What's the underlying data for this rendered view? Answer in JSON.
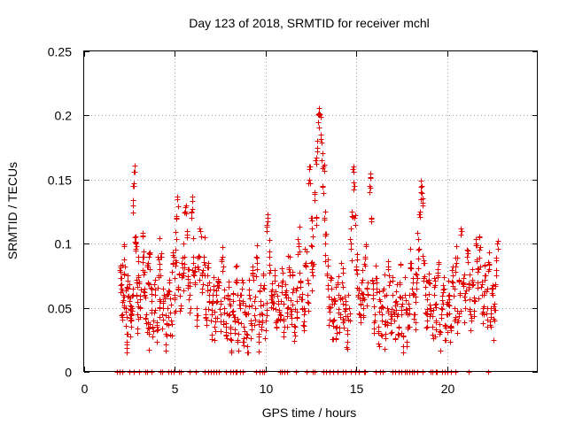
{
  "chart_data": {
    "type": "scatter",
    "title": "Day 123 of 2018, SRMTID for receiver mchl",
    "xlabel": "GPS time / hours",
    "ylabel": "SRMTID / TECUs",
    "xlim": [
      0,
      25
    ],
    "ylim": [
      0,
      0.25
    ],
    "xticks": [
      0,
      5,
      10,
      15,
      20
    ],
    "xtick_labels": [
      "0",
      "5",
      "10",
      "15",
      "20"
    ],
    "yticks": [
      0,
      0.05,
      0.1,
      0.15,
      0.2,
      0.25
    ],
    "ytick_labels": [
      "0",
      "0.05",
      "0.1",
      "0.15",
      "0.2",
      "0.25"
    ],
    "grid": true,
    "marker": "+",
    "color": "#e00000",
    "series": [
      {
        "name": "SRMTID",
        "description": "dense cloud of points, approximated",
        "points": [
          [
            2.0,
            0.068
          ],
          [
            2.05,
            0.073
          ],
          [
            2.1,
            0.045
          ],
          [
            2.15,
            0.06
          ],
          [
            2.2,
            0.088
          ],
          [
            2.3,
            0.05
          ],
          [
            2.35,
            0.03
          ],
          [
            2.4,
            0.065
          ],
          [
            2.5,
            0.055
          ],
          [
            2.55,
            0.04
          ],
          [
            2.6,
            0.035
          ],
          [
            2.65,
            0.05
          ],
          [
            2.7,
            0.13
          ],
          [
            2.72,
            0.145
          ],
          [
            2.75,
            0.156
          ],
          [
            2.8,
            0.105
          ],
          [
            2.85,
            0.1
          ],
          [
            2.9,
            0.06
          ],
          [
            2.95,
            0.045
          ],
          [
            3.0,
            0.075
          ],
          [
            3.1,
            0.05
          ],
          [
            3.2,
            0.106
          ],
          [
            3.25,
            0.09
          ],
          [
            3.3,
            0.065
          ],
          [
            3.4,
            0.045
          ],
          [
            3.5,
            0.07
          ],
          [
            3.55,
            0.03
          ],
          [
            3.6,
            0.08
          ],
          [
            3.7,
            0.055
          ],
          [
            3.8,
            0.04
          ],
          [
            3.9,
            0.06
          ],
          [
            4.0,
            0.035
          ],
          [
            4.1,
            0.075
          ],
          [
            4.15,
            0.05
          ],
          [
            4.2,
            0.09
          ],
          [
            4.3,
            0.045
          ],
          [
            4.4,
            0.06
          ],
          [
            4.5,
            0.03
          ],
          [
            4.6,
            0.05
          ],
          [
            4.7,
            0.07
          ],
          [
            4.8,
            0.04
          ],
          [
            4.9,
            0.085
          ],
          [
            5.0,
            0.06
          ],
          [
            5.05,
            0.095
          ],
          [
            5.1,
            0.12
          ],
          [
            5.15,
            0.135
          ],
          [
            5.2,
            0.065
          ],
          [
            5.3,
            0.05
          ],
          [
            5.4,
            0.075
          ],
          [
            5.5,
            0.09
          ],
          [
            5.55,
            0.125
          ],
          [
            5.6,
            0.13
          ],
          [
            5.65,
            0.105
          ],
          [
            5.7,
            0.08
          ],
          [
            5.8,
            0.06
          ],
          [
            5.9,
            0.125
          ],
          [
            5.95,
            0.133
          ],
          [
            6.0,
            0.09
          ],
          [
            6.1,
            0.07
          ],
          [
            6.2,
            0.05
          ],
          [
            6.3,
            0.08
          ],
          [
            6.4,
            0.11
          ],
          [
            6.5,
            0.065
          ],
          [
            6.6,
            0.09
          ],
          [
            6.7,
            0.045
          ],
          [
            6.8,
            0.075
          ],
          [
            6.9,
            0.055
          ],
          [
            7.0,
            0.04
          ],
          [
            7.1,
            0.06
          ],
          [
            7.2,
            0.035
          ],
          [
            7.3,
            0.055
          ],
          [
            7.4,
            0.07
          ],
          [
            7.5,
            0.045
          ],
          [
            7.6,
            0.09
          ],
          [
            7.7,
            0.05
          ],
          [
            7.8,
            0.035
          ],
          [
            7.9,
            0.06
          ],
          [
            8.0,
            0.045
          ],
          [
            8.1,
            0.025
          ],
          [
            8.2,
            0.055
          ],
          [
            8.3,
            0.04
          ],
          [
            8.4,
            0.07
          ],
          [
            8.5,
            0.03
          ],
          [
            8.6,
            0.05
          ],
          [
            8.7,
            0.065
          ],
          [
            8.8,
            0.035
          ],
          [
            8.9,
            0.045
          ],
          [
            9.0,
            0.02
          ],
          [
            9.1,
            0.06
          ],
          [
            9.2,
            0.04
          ],
          [
            9.3,
            0.075
          ],
          [
            9.4,
            0.05
          ],
          [
            9.5,
            0.085
          ],
          [
            9.6,
            0.03
          ],
          [
            9.7,
            0.055
          ],
          [
            9.8,
            0.045
          ],
          [
            9.9,
            0.065
          ],
          [
            10.0,
            0.04
          ],
          [
            10.05,
            0.11
          ],
          [
            10.1,
            0.123
          ],
          [
            10.2,
            0.09
          ],
          [
            10.3,
            0.06
          ],
          [
            10.4,
            0.05
          ],
          [
            10.5,
            0.075
          ],
          [
            10.6,
            0.035
          ],
          [
            10.7,
            0.055
          ],
          [
            10.8,
            0.045
          ],
          [
            10.9,
            0.07
          ],
          [
            11.0,
            0.04
          ],
          [
            11.1,
            0.06
          ],
          [
            11.2,
            0.05
          ],
          [
            11.3,
            0.08
          ],
          [
            11.4,
            0.045
          ],
          [
            11.5,
            0.065
          ],
          [
            11.6,
            0.035
          ],
          [
            11.7,
            0.055
          ],
          [
            11.8,
            0.1
          ],
          [
            11.9,
            0.07
          ],
          [
            12.0,
            0.05
          ],
          [
            12.1,
            0.045
          ],
          [
            12.2,
            0.085
          ],
          [
            12.3,
            0.06
          ],
          [
            12.4,
            0.15
          ],
          [
            12.45,
            0.16
          ],
          [
            12.5,
            0.12
          ],
          [
            12.55,
            0.098
          ],
          [
            12.6,
            0.075
          ],
          [
            12.7,
            0.14
          ],
          [
            12.75,
            0.165
          ],
          [
            12.8,
            0.12
          ],
          [
            12.85,
            0.175
          ],
          [
            12.9,
            0.195
          ],
          [
            12.95,
            0.2
          ],
          [
            13.0,
            0.201
          ],
          [
            13.05,
            0.185
          ],
          [
            13.1,
            0.165
          ],
          [
            13.15,
            0.145
          ],
          [
            13.2,
            0.16
          ],
          [
            13.25,
            0.12
          ],
          [
            13.3,
            0.1
          ],
          [
            13.4,
            0.075
          ],
          [
            13.5,
            0.05
          ],
          [
            13.6,
            0.065
          ],
          [
            13.7,
            0.04
          ],
          [
            13.8,
            0.055
          ],
          [
            13.9,
            0.035
          ],
          [
            14.0,
            0.06
          ],
          [
            14.1,
            0.045
          ],
          [
            14.2,
            0.07
          ],
          [
            14.3,
            0.04
          ],
          [
            14.4,
            0.055
          ],
          [
            14.5,
            0.03
          ],
          [
            14.6,
            0.05
          ],
          [
            14.7,
            0.1
          ],
          [
            14.75,
            0.125
          ],
          [
            14.8,
            0.158
          ],
          [
            14.85,
            0.148
          ],
          [
            14.9,
            0.12
          ],
          [
            15.0,
            0.08
          ],
          [
            15.1,
            0.06
          ],
          [
            15.2,
            0.045
          ],
          [
            15.3,
            0.07
          ],
          [
            15.4,
            0.05
          ],
          [
            15.5,
            0.09
          ],
          [
            15.6,
            0.065
          ],
          [
            15.7,
            0.14
          ],
          [
            15.75,
            0.152
          ],
          [
            15.8,
            0.12
          ],
          [
            15.9,
            0.06
          ],
          [
            16.0,
            0.045
          ],
          [
            16.1,
            0.07
          ],
          [
            16.2,
            0.035
          ],
          [
            16.3,
            0.055
          ],
          [
            16.4,
            0.04
          ],
          [
            16.5,
            0.065
          ],
          [
            16.6,
            0.03
          ],
          [
            16.7,
            0.05
          ],
          [
            16.8,
            0.075
          ],
          [
            16.9,
            0.045
          ],
          [
            17.0,
            0.06
          ],
          [
            17.1,
            0.04
          ],
          [
            17.2,
            0.055
          ],
          [
            17.3,
            0.03
          ],
          [
            17.4,
            0.07
          ],
          [
            17.5,
            0.045
          ],
          [
            17.6,
            0.02
          ],
          [
            17.7,
            0.06
          ],
          [
            17.8,
            0.035
          ],
          [
            17.9,
            0.05
          ],
          [
            18.0,
            0.085
          ],
          [
            18.1,
            0.06
          ],
          [
            18.2,
            0.045
          ],
          [
            18.3,
            0.07
          ],
          [
            18.4,
            0.095
          ],
          [
            18.5,
            0.125
          ],
          [
            18.55,
            0.14
          ],
          [
            18.6,
            0.145
          ],
          [
            18.65,
            0.13
          ],
          [
            18.7,
            0.085
          ],
          [
            18.8,
            0.06
          ],
          [
            18.9,
            0.045
          ],
          [
            19.0,
            0.07
          ],
          [
            19.1,
            0.05
          ],
          [
            19.2,
            0.035
          ],
          [
            19.3,
            0.06
          ],
          [
            19.4,
            0.04
          ],
          [
            19.5,
            0.075
          ],
          [
            19.6,
            0.03
          ],
          [
            19.7,
            0.05
          ],
          [
            19.8,
            0.065
          ],
          [
            19.9,
            0.025
          ],
          [
            20.0,
            0.045
          ],
          [
            20.1,
            0.06
          ],
          [
            20.2,
            0.035
          ],
          [
            20.3,
            0.075
          ],
          [
            20.4,
            0.05
          ],
          [
            20.5,
            0.085
          ],
          [
            20.6,
            0.04
          ],
          [
            20.7,
            0.06
          ],
          [
            20.8,
            0.11
          ],
          [
            20.9,
            0.07
          ],
          [
            21.0,
            0.05
          ],
          [
            21.1,
            0.09
          ],
          [
            21.2,
            0.065
          ],
          [
            21.3,
            0.045
          ],
          [
            21.4,
            0.08
          ],
          [
            21.5,
            0.055
          ],
          [
            21.6,
            0.1
          ],
          [
            21.7,
            0.07
          ],
          [
            21.8,
            0.095
          ],
          [
            21.9,
            0.06
          ],
          [
            22.0,
            0.045
          ],
          [
            22.1,
            0.075
          ],
          [
            22.2,
            0.05
          ],
          [
            22.3,
            0.08
          ],
          [
            22.4,
            0.035
          ],
          [
            22.5,
            0.06
          ],
          [
            22.6,
            0.04
          ],
          [
            22.7,
            0.075
          ],
          [
            22.8,
            0.102
          ]
        ]
      }
    ],
    "zero_band": {
      "x_start": 1.8,
      "x_end": 22.5,
      "value": 0
    }
  }
}
